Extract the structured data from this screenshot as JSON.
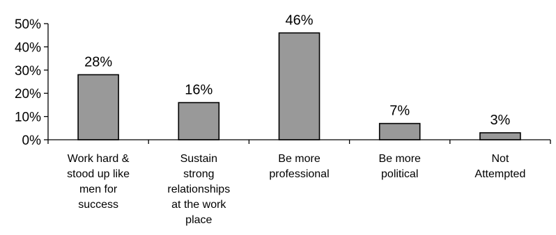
{
  "chart_data": {
    "type": "bar",
    "categories": [
      [
        "Work hard &",
        "stood up like",
        "men for",
        "success"
      ],
      [
        "Sustain",
        "strong",
        "relationships",
        "at the work",
        "place"
      ],
      [
        "Be more",
        "professional"
      ],
      [
        "Be more",
        "political"
      ],
      [
        "Not",
        "Attempted"
      ]
    ],
    "values": [
      28,
      16,
      46,
      7,
      3
    ],
    "data_labels": [
      "28%",
      "16%",
      "46%",
      "7%",
      "3%"
    ],
    "title": "",
    "xlabel": "",
    "ylabel": "",
    "ylim": [
      0,
      50
    ],
    "yticks": [
      0,
      10,
      20,
      30,
      40,
      50
    ],
    "ytick_labels": [
      "0%",
      "10%",
      "20%",
      "30%",
      "40%",
      "50%"
    ],
    "grid": false,
    "legend": "none",
    "colors": {
      "bar_fill": "#999999",
      "bar_stroke": "#000000"
    }
  }
}
